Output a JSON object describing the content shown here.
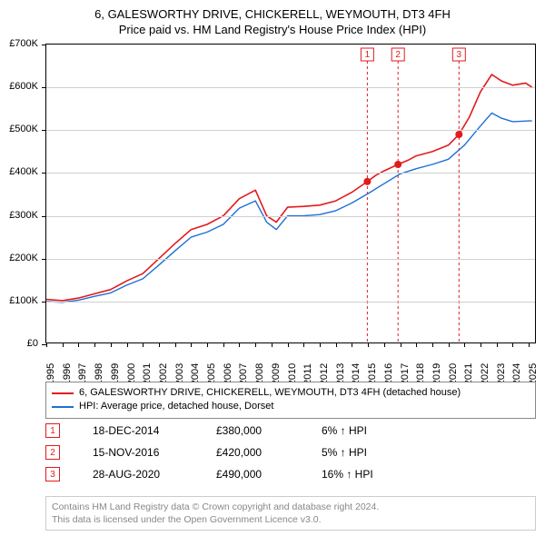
{
  "title": {
    "line1": "6, GALESWORTHY DRIVE, CHICKERELL, WEYMOUTH, DT3 4FH",
    "line2": "Price paid vs. HM Land Registry's House Price Index (HPI)"
  },
  "chart": {
    "type": "line",
    "background_color": "#ffffff",
    "grid_color": "#d0d0d0",
    "xlim": [
      1995,
      2025.5
    ],
    "ylim": [
      0,
      700000
    ],
    "ytick_step": 100000,
    "y_ticks": [
      {
        "v": 0,
        "label": "£0"
      },
      {
        "v": 100000,
        "label": "£100K"
      },
      {
        "v": 200000,
        "label": "£200K"
      },
      {
        "v": 300000,
        "label": "£300K"
      },
      {
        "v": 400000,
        "label": "£400K"
      },
      {
        "v": 500000,
        "label": "£500K"
      },
      {
        "v": 600000,
        "label": "£600K"
      },
      {
        "v": 700000,
        "label": "£700K"
      }
    ],
    "x_ticks": [
      1995,
      1996,
      1997,
      1998,
      1999,
      2000,
      2001,
      2002,
      2003,
      2004,
      2005,
      2006,
      2007,
      2008,
      2009,
      2010,
      2011,
      2012,
      2013,
      2014,
      2015,
      2016,
      2017,
      2018,
      2019,
      2020,
      2021,
      2022,
      2023,
      2024,
      2025
    ],
    "series": [
      {
        "name": "property",
        "label": "6, GALESWORTHY DRIVE, CHICKERELL, WEYMOUTH, DT3 4FH (detached house)",
        "color": "#e31a1c",
        "line_width": 1.6,
        "points": [
          [
            1995,
            105000
          ],
          [
            1996,
            102000
          ],
          [
            1997,
            108000
          ],
          [
            1998,
            118000
          ],
          [
            1999,
            128000
          ],
          [
            2000,
            148000
          ],
          [
            2001,
            165000
          ],
          [
            2002,
            200000
          ],
          [
            2003,
            235000
          ],
          [
            2004,
            268000
          ],
          [
            2005,
            280000
          ],
          [
            2006,
            300000
          ],
          [
            2007,
            340000
          ],
          [
            2008,
            360000
          ],
          [
            2008.7,
            300000
          ],
          [
            2009.3,
            285000
          ],
          [
            2010,
            320000
          ],
          [
            2011,
            322000
          ],
          [
            2012,
            325000
          ],
          [
            2013,
            335000
          ],
          [
            2014,
            355000
          ],
          [
            2014.96,
            380000
          ],
          [
            2015.5,
            395000
          ],
          [
            2016,
            405000
          ],
          [
            2016.87,
            420000
          ],
          [
            2017.5,
            430000
          ],
          [
            2018,
            440000
          ],
          [
            2019,
            450000
          ],
          [
            2020,
            465000
          ],
          [
            2020.66,
            490000
          ],
          [
            2021.3,
            530000
          ],
          [
            2022,
            590000
          ],
          [
            2022.7,
            630000
          ],
          [
            2023.3,
            615000
          ],
          [
            2024,
            605000
          ],
          [
            2024.8,
            610000
          ],
          [
            2025.2,
            600000
          ]
        ]
      },
      {
        "name": "hpi",
        "label": "HPI: Average price, detached house, Dorset",
        "color": "#1f6fd4",
        "line_width": 1.4,
        "points": [
          [
            1995,
            100000
          ],
          [
            1996,
            98000
          ],
          [
            1997,
            103000
          ],
          [
            1998,
            112000
          ],
          [
            1999,
            120000
          ],
          [
            2000,
            138000
          ],
          [
            2001,
            153000
          ],
          [
            2002,
            185000
          ],
          [
            2003,
            218000
          ],
          [
            2004,
            250000
          ],
          [
            2005,
            262000
          ],
          [
            2006,
            280000
          ],
          [
            2007,
            318000
          ],
          [
            2008,
            335000
          ],
          [
            2008.7,
            285000
          ],
          [
            2009.3,
            268000
          ],
          [
            2010,
            300000
          ],
          [
            2011,
            300000
          ],
          [
            2012,
            303000
          ],
          [
            2013,
            312000
          ],
          [
            2014,
            330000
          ],
          [
            2015,
            352000
          ],
          [
            2016,
            375000
          ],
          [
            2017,
            398000
          ],
          [
            2018,
            410000
          ],
          [
            2019,
            420000
          ],
          [
            2020,
            432000
          ],
          [
            2021,
            465000
          ],
          [
            2022,
            510000
          ],
          [
            2022.7,
            540000
          ],
          [
            2023.3,
            528000
          ],
          [
            2024,
            520000
          ],
          [
            2025.2,
            522000
          ]
        ]
      }
    ],
    "sale_points": [
      {
        "x": 2014.96,
        "y": 380000,
        "color": "#e31a1c"
      },
      {
        "x": 2016.87,
        "y": 420000,
        "color": "#e31a1c"
      },
      {
        "x": 2020.66,
        "y": 490000,
        "color": "#e31a1c"
      }
    ],
    "marker_lines": [
      {
        "n": "1",
        "x": 2014.96,
        "color": "#e31a1c"
      },
      {
        "n": "2",
        "x": 2016.87,
        "color": "#e31a1c"
      },
      {
        "n": "3",
        "x": 2020.66,
        "color": "#e31a1c"
      }
    ],
    "marker_label_y_offset": 12,
    "point_radius": 4
  },
  "legend": {
    "items": [
      {
        "color": "#e31a1c",
        "text": "6, GALESWORTHY DRIVE, CHICKERELL, WEYMOUTH, DT3 4FH (detached house)"
      },
      {
        "color": "#1f6fd4",
        "text": "HPI: Average price, detached house, Dorset"
      }
    ]
  },
  "markers": [
    {
      "n": "1",
      "color": "#e31a1c",
      "date": "18-DEC-2014",
      "price": "£380,000",
      "pct": "6% ↑ HPI"
    },
    {
      "n": "2",
      "color": "#e31a1c",
      "date": "15-NOV-2016",
      "price": "£420,000",
      "pct": "5% ↑ HPI"
    },
    {
      "n": "3",
      "color": "#e31a1c",
      "date": "28-AUG-2020",
      "price": "£490,000",
      "pct": "16% ↑ HPI"
    }
  ],
  "footer": {
    "line1": "Contains HM Land Registry data © Crown copyright and database right 2024.",
    "line2": "This data is licensed under the Open Government Licence v3.0."
  }
}
